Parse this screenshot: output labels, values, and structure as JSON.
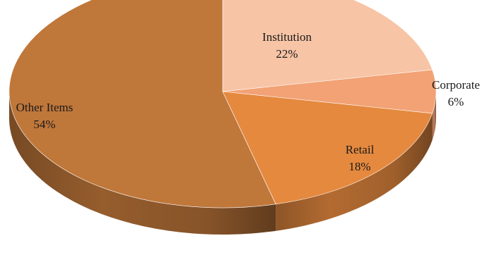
{
  "chart_data": {
    "type": "pie",
    "style": "3d",
    "title": "",
    "slices": [
      {
        "label": "Institution",
        "value": 22,
        "value_label": "22%",
        "color": "#f7c4a5"
      },
      {
        "label": "Corporate",
        "value": 6,
        "value_label": "6%",
        "color": "#f2a275"
      },
      {
        "label": "Retail",
        "value": 18,
        "value_label": "18%",
        "color": "#e5893f"
      },
      {
        "label": "Other Items",
        "value": 54,
        "value_label": "54%",
        "color": "#c0773a"
      }
    ],
    "legend": "none"
  }
}
